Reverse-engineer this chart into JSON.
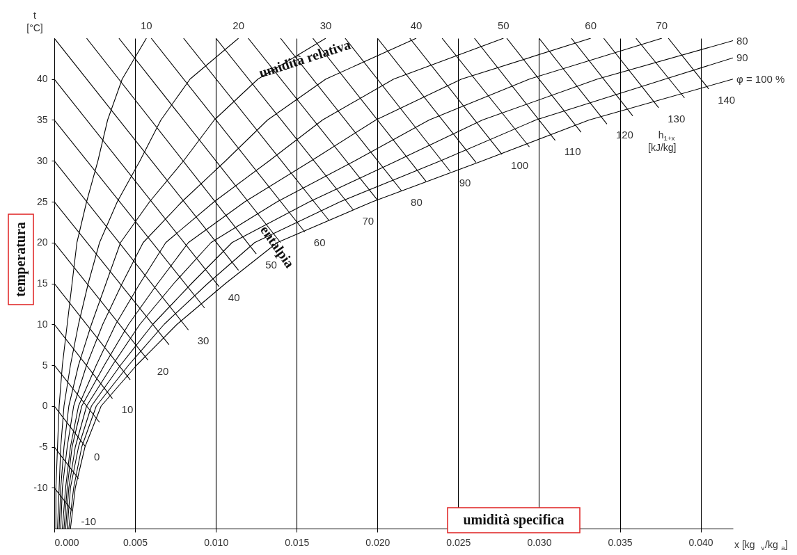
{
  "chart_data": {
    "type": "line",
    "xlabel": "x [kg$_{v}$/kg$_{a}$]",
    "ylabel": "t\n[°C]",
    "xlim": [
      0,
      0.042
    ],
    "ylim": [
      -15,
      45
    ],
    "xticks": [
      {
        "value": 0,
        "label": "0.000"
      },
      0.005,
      {
        "value": 0.01,
        "label": "0.010"
      },
      0.015,
      {
        "value": 0.02,
        "label": "0.020"
      },
      0.025,
      {
        "value": 0.03,
        "label": "0.030"
      },
      0.035,
      {
        "value": 0.04,
        "label": "0.040"
      }
    ],
    "yticks": [
      -10,
      -5,
      0,
      5,
      10,
      15,
      20,
      25,
      30,
      35,
      40
    ],
    "grid": "x",
    "legend": false,
    "line_style": "solid",
    "annotations": [
      "umidità relativa",
      "entalpia",
      "temperatura",
      "umidità specifica",
      "h$_{1+x}$\n[kJ/kg]"
    ],
    "series": [
      {
        "name": "10",
        "color": "#000000",
        "x": [
          0.0001,
          0.0001,
          0.0002,
          0.0003,
          0.0005,
          0.0008,
          0.0011,
          0.0014,
          0.002,
          0.0027,
          0.0033,
          0.0042,
          0.0057
        ],
        "values": [
          -15,
          -10,
          -5,
          0,
          5,
          10,
          15,
          20,
          25,
          30,
          35,
          40,
          45
        ]
      },
      {
        "name": "20",
        "color": "#000000",
        "x": [
          0.0002,
          0.0003,
          0.0004,
          0.0006,
          0.001,
          0.0015,
          0.0021,
          0.0028,
          0.0039,
          0.0053,
          0.0066,
          0.0084,
          0.0114
        ],
        "values": [
          -15,
          -10,
          -5,
          0,
          5,
          10,
          15,
          20,
          25,
          30,
          35,
          40,
          45
        ]
      },
      {
        "name": "30",
        "color": "#000000",
        "x": [
          0.0003,
          0.0004,
          0.0006,
          0.0009,
          0.0015,
          0.0023,
          0.0032,
          0.0041,
          0.0059,
          0.008,
          0.0099,
          0.0126,
          0.0168
        ],
        "values": [
          -15,
          -10,
          -5,
          0,
          5,
          10,
          15,
          20,
          25,
          30,
          35,
          40,
          45
        ]
      },
      {
        "name": "40",
        "color": "#000000",
        "x": [
          0.0004,
          0.0005,
          0.0008,
          0.0012,
          0.002,
          0.003,
          0.0042,
          0.0055,
          0.0079,
          0.0106,
          0.0132,
          0.0168,
          0.0224
        ],
        "values": [
          -15,
          -10,
          -5,
          0,
          5,
          10,
          15,
          20,
          25,
          30,
          35,
          40,
          45
        ]
      },
      {
        "name": "50",
        "color": "#000000",
        "x": [
          0.0005,
          0.0007,
          0.001,
          0.0015,
          0.0026,
          0.0038,
          0.0053,
          0.0069,
          0.0099,
          0.0133,
          0.0166,
          0.021,
          0.0278
        ],
        "values": [
          -15,
          -10,
          -5,
          0,
          5,
          10,
          15,
          20,
          25,
          30,
          35,
          40,
          45
        ]
      },
      {
        "name": "60",
        "color": "#000000",
        "x": [
          0.0006,
          0.0008,
          0.0011,
          0.0017,
          0.0031,
          0.0046,
          0.0064,
          0.0083,
          0.0118,
          0.0159,
          0.0199,
          0.0252,
          0.0332
        ],
        "values": [
          -15,
          -10,
          -5,
          0,
          5,
          10,
          15,
          20,
          25,
          30,
          35,
          40,
          45
        ]
      },
      {
        "name": "70",
        "color": "#000000",
        "x": [
          0.0007,
          0.0009,
          0.0013,
          0.002,
          0.0036,
          0.0053,
          0.0074,
          0.0097,
          0.0138,
          0.0186,
          0.0232,
          0.0294,
          0.0376
        ],
        "values": [
          -15,
          -10,
          -5,
          0,
          5,
          10,
          15,
          20,
          25,
          30,
          35,
          40,
          45
        ]
      },
      {
        "name": "80",
        "color": "#000000",
        "x": [
          0.0008,
          0.001,
          0.0015,
          0.0023,
          0.0041,
          0.0061,
          0.0085,
          0.011,
          0.0158,
          0.0212,
          0.0265,
          0.0336,
          0.042
        ],
        "values": [
          -15,
          -10,
          -5,
          0,
          5,
          10,
          15,
          20,
          25,
          30,
          35,
          40,
          44.7
        ]
      },
      {
        "name": "90",
        "color": "#000000",
        "x": [
          0.0009,
          0.0012,
          0.0017,
          0.0026,
          0.0046,
          0.0068,
          0.0095,
          0.0124,
          0.0177,
          0.0239,
          0.0298,
          0.0378,
          0.042
        ],
        "values": [
          -15,
          -10,
          -5,
          0,
          5,
          10,
          15,
          20,
          25,
          30,
          35,
          40,
          42.6
        ]
      },
      {
        "name": "φ = 100 %",
        "color": "#000000",
        "x": [
          0.001,
          0.0013,
          0.0019,
          0.0029,
          0.0051,
          0.0076,
          0.0106,
          0.0138,
          0.0197,
          0.0265,
          0.0331,
          0.042
        ],
        "values": [
          -15,
          -10,
          -5,
          0,
          5,
          10,
          15,
          20,
          25,
          30,
          35,
          40
        ]
      },
      {
        "name": "-10",
        "color": "#000000",
        "x": [
          0,
          0.0011
        ],
        "values": [
          -10,
          -12.8
        ]
      },
      {
        "color": "#000000",
        "x": [
          0,
          0.0015
        ],
        "values": [
          -5,
          -8.9
        ]
      },
      {
        "name": "0",
        "color": "#000000",
        "x": [
          0,
          0.0019
        ],
        "values": [
          0,
          -4.9
        ]
      },
      {
        "color": "#000000",
        "x": [
          0,
          0.0028
        ],
        "values": [
          5,
          -2
        ]
      },
      {
        "name": "10",
        "color": "#000000",
        "x": [
          0,
          0.0036
        ],
        "values": [
          10,
          0.9
        ]
      },
      {
        "color": "#000000",
        "x": [
          0,
          0.0047
        ],
        "values": [
          15,
          3.2
        ]
      },
      {
        "name": "20",
        "color": "#000000",
        "x": [
          0,
          0.0058
        ],
        "values": [
          20,
          5.6
        ]
      },
      {
        "color": "#000000",
        "x": [
          0,
          0.0071
        ],
        "values": [
          25,
          7.5
        ]
      },
      {
        "name": "30",
        "color": "#000000",
        "x": [
          0,
          0.0083
        ],
        "values": [
          30,
          9.3
        ]
      },
      {
        "color": "#000000",
        "x": [
          0,
          0.0093
        ],
        "values": [
          35,
          12
        ]
      },
      {
        "name": "40",
        "color": "#000000",
        "x": [
          0,
          0.0102
        ],
        "values": [
          40,
          14.6
        ]
      },
      {
        "color": "#000000",
        "x": [
          0,
          0.0114
        ],
        "values": [
          45,
          16.6
        ]
      },
      {
        "name": "50",
        "color": "#000000",
        "x": [
          0.002,
          0.0125
        ],
        "values": [
          45,
          18.6
        ]
      },
      {
        "color": "#000000",
        "x": [
          0.004,
          0.014
        ],
        "values": [
          45,
          20
        ]
      },
      {
        "name": "60",
        "color": "#000000",
        "x": [
          0.006,
          0.0155
        ],
        "values": [
          45,
          21.3
        ]
      },
      {
        "color": "#000000",
        "x": [
          0.008,
          0.017
        ],
        "values": [
          45,
          22.7
        ]
      },
      {
        "name": "70",
        "color": "#000000",
        "x": [
          0.01,
          0.0185
        ],
        "values": [
          45,
          24
        ]
      },
      {
        "color": "#000000",
        "x": [
          0.012,
          0.02
        ],
        "values": [
          45,
          25.2
        ]
      },
      {
        "name": "80",
        "color": "#000000",
        "x": [
          0.014,
          0.0215
        ],
        "values": [
          45,
          26.3
        ]
      },
      {
        "color": "#000000",
        "x": [
          0.016,
          0.023
        ],
        "values": [
          45,
          27.5
        ]
      },
      {
        "name": "90",
        "color": "#000000",
        "x": [
          0.018,
          0.0245
        ],
        "values": [
          45,
          28.7
        ]
      },
      {
        "color": "#000000",
        "x": [
          0.02,
          0.0261
        ],
        "values": [
          45,
          29.8
        ]
      },
      {
        "name": "100",
        "color": "#000000",
        "x": [
          0.022,
          0.0277
        ],
        "values": [
          45,
          30.8
        ]
      },
      {
        "color": "#000000",
        "x": [
          0.024,
          0.0294
        ],
        "values": [
          45,
          31.7
        ]
      },
      {
        "name": "110",
        "color": "#000000",
        "x": [
          0.026,
          0.031
        ],
        "values": [
          45,
          32.5
        ]
      },
      {
        "color": "#000000",
        "x": [
          0.028,
          0.0326
        ],
        "values": [
          45,
          33.5
        ]
      },
      {
        "name": "120",
        "color": "#000000",
        "x": [
          0.03,
          0.0342
        ],
        "values": [
          45,
          34.5
        ]
      },
      {
        "color": "#000000",
        "x": [
          0.032,
          0.0358
        ],
        "values": [
          45,
          35.5
        ]
      },
      {
        "name": "130",
        "color": "#000000",
        "x": [
          0.034,
          0.0374
        ],
        "values": [
          45,
          36.5
        ]
      },
      {
        "color": "#000000",
        "x": [
          0.036,
          0.039
        ],
        "values": [
          45,
          37.7
        ]
      },
      {
        "name": "140",
        "color": "#000000",
        "x": [
          0.038,
          0.0405
        ],
        "values": [
          45,
          38.8
        ]
      }
    ]
  }
}
